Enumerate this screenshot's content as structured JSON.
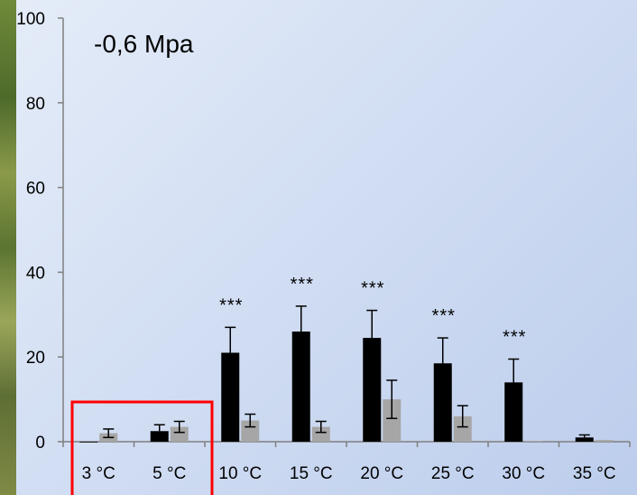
{
  "chart_data": {
    "type": "bar",
    "title": "-0,6 Mpa",
    "categories": [
      "3 °C",
      "5 °C",
      "10 °C",
      "15 °C",
      "20 °C",
      "25 °C",
      "30 °C",
      "35 °C"
    ],
    "ylim": [
      0,
      100
    ],
    "yticks": [
      "0",
      "20",
      "40",
      "60",
      "80",
      "100"
    ],
    "series": [
      {
        "values": [
          0,
          2.5,
          21,
          26,
          24.5,
          18.5,
          14,
          1
        ],
        "errors": [
          0,
          1.5,
          6,
          6,
          6.5,
          6,
          5.5,
          0.6
        ],
        "color": "#000000"
      },
      {
        "values": [
          2,
          3.5,
          5,
          3.5,
          10,
          6,
          0.2,
          0.4
        ],
        "errors": [
          1,
          1.3,
          1.5,
          1.3,
          4.5,
          2.5,
          0,
          0
        ],
        "color": "#a6a6a6"
      }
    ],
    "annotations": [
      "",
      "",
      "***",
      "***",
      "***",
      "***",
      "***",
      ""
    ],
    "highlight": {
      "categories": [
        "3 °C",
        "5 °C"
      ],
      "color": "#ff0000"
    }
  }
}
